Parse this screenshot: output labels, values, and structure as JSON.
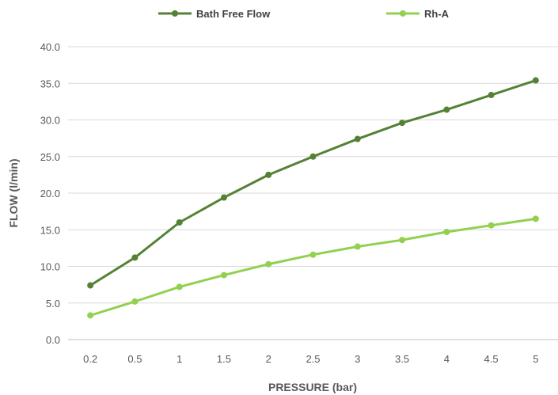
{
  "chart_data": {
    "type": "line",
    "title": "",
    "xlabel": "PRESSURE (bar)",
    "ylabel": "FLOW (l/min)",
    "categories": [
      "0.2",
      "0.5",
      "1",
      "1.5",
      "2",
      "2.5",
      "3",
      "3.5",
      "4",
      "4.5",
      "5"
    ],
    "ylim": [
      0,
      40
    ],
    "yticks": [
      "0.0",
      "5.0",
      "10.0",
      "15.0",
      "20.0",
      "25.0",
      "30.0",
      "35.0",
      "40.0"
    ],
    "grid": true,
    "legend": "top",
    "series": [
      {
        "name": "Bath Free Flow",
        "color": "#548235",
        "values": [
          7.4,
          11.2,
          16.0,
          19.4,
          22.5,
          25.0,
          27.4,
          29.6,
          31.4,
          33.4,
          35.4
        ]
      },
      {
        "name": "Rh-A",
        "color": "#92d050",
        "values": [
          3.3,
          5.2,
          7.2,
          8.8,
          10.3,
          11.6,
          12.7,
          13.6,
          14.7,
          15.6,
          16.5
        ]
      }
    ]
  }
}
